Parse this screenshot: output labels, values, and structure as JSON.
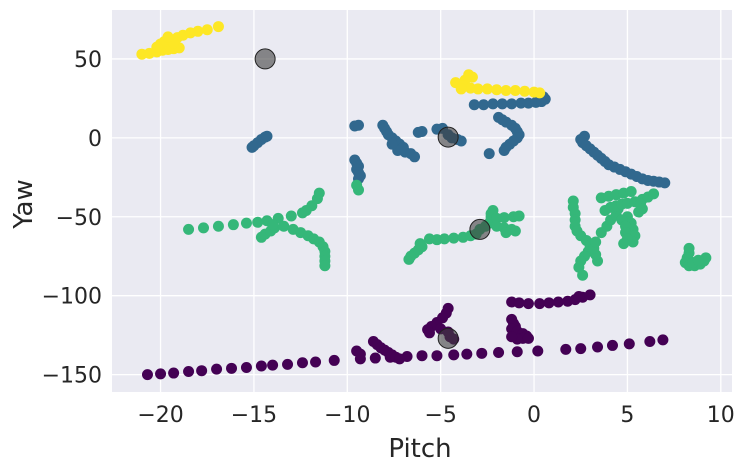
{
  "chart_data": {
    "type": "scatter",
    "xlabel": "Pitch",
    "ylabel": "Yaw",
    "xlim": [
      -22.6,
      10.6
    ],
    "ylim": [
      -161,
      81
    ],
    "xticks": [
      -20,
      -15,
      -10,
      -5,
      0,
      5,
      10
    ],
    "xtick_labels": [
      "−20",
      "−15",
      "−10",
      "−5",
      "0",
      "5",
      "10"
    ],
    "yticks": [
      -150,
      -100,
      -50,
      0,
      50
    ],
    "ytick_labels": [
      "−150",
      "−100",
      "−50",
      "0",
      "50"
    ],
    "grid": true,
    "legend": "none",
    "background": "#eaeaf2",
    "colormap": "viridis",
    "series": [
      {
        "color": "#440154",
        "points": [
          [
            -20.7,
            -150
          ],
          [
            -20.0,
            -149.5
          ],
          [
            -19.3,
            -149
          ],
          [
            -18.5,
            -148
          ],
          [
            -17.8,
            -147.5
          ],
          [
            -17.0,
            -146.5
          ],
          [
            -16.2,
            -146
          ],
          [
            -15.4,
            -145.5
          ],
          [
            -14.6,
            -144.5
          ],
          [
            -14.0,
            -144
          ],
          [
            -13.2,
            -143.5
          ],
          [
            -12.4,
            -142.5
          ],
          [
            -11.7,
            -142
          ],
          [
            -10.7,
            -141
          ],
          [
            -9.3,
            -140
          ],
          [
            -8.5,
            -139.5
          ],
          [
            -7.7,
            -139
          ],
          [
            -6.8,
            -138.5
          ],
          [
            -6.0,
            -138
          ],
          [
            -5.2,
            -138
          ],
          [
            -4.3,
            -137.5
          ],
          [
            -3.6,
            -137
          ],
          [
            -2.8,
            -136.5
          ],
          [
            -1.9,
            -136
          ],
          [
            -0.9,
            -135.5
          ],
          [
            0.2,
            -135
          ],
          [
            1.7,
            -134
          ],
          [
            2.5,
            -133.5
          ],
          [
            3.4,
            -132.5
          ],
          [
            4.2,
            -131.5
          ],
          [
            5.1,
            -130.5
          ],
          [
            6.2,
            -129
          ],
          [
            6.9,
            -128
          ],
          [
            -9.5,
            -135
          ],
          [
            -9.3,
            -137
          ],
          [
            -8.6,
            -129
          ],
          [
            -8.4,
            -131
          ],
          [
            -8.2,
            -133
          ],
          [
            -8.0,
            -134.5
          ],
          [
            -7.8,
            -136
          ],
          [
            -7.6,
            -137.5
          ],
          [
            -7.4,
            -139
          ],
          [
            -7.2,
            -140
          ],
          [
            -4.6,
            -108
          ],
          [
            -4.7,
            -111
          ],
          [
            -4.9,
            -114
          ],
          [
            -5.2,
            -117
          ],
          [
            -5.5,
            -119.5
          ],
          [
            -5.7,
            -121.5
          ],
          [
            -5.6,
            -123.5
          ],
          [
            -5.0,
            -121
          ],
          [
            -4.6,
            -123
          ],
          [
            -4.5,
            -126
          ],
          [
            -4.3,
            -127.5
          ],
          [
            -1.2,
            -104
          ],
          [
            -0.8,
            -104.5
          ],
          [
            -0.3,
            -105
          ],
          [
            0.3,
            -105
          ],
          [
            0.8,
            -104.5
          ],
          [
            1.3,
            -104
          ],
          [
            1.8,
            -103.5
          ],
          [
            2.2,
            -102.5
          ],
          [
            2.6,
            -101
          ],
          [
            3.0,
            -99.5
          ],
          [
            2.4,
            -100.5
          ],
          [
            -1.2,
            -115
          ],
          [
            -1.1,
            -117.5
          ],
          [
            -1.0,
            -119.5
          ],
          [
            -1.2,
            -121
          ],
          [
            -0.9,
            -122.5
          ],
          [
            -0.6,
            -124
          ],
          [
            -0.4,
            -125.5
          ],
          [
            -0.6,
            -127
          ],
          [
            -0.9,
            -127.5
          ],
          [
            -1.2,
            -126
          ],
          [
            -0.3,
            -127
          ]
        ]
      },
      {
        "color": "#31688e",
        "points": [
          [
            -15.1,
            -6
          ],
          [
            -15.0,
            -5
          ],
          [
            -14.8,
            -3
          ],
          [
            -14.6,
            -1
          ],
          [
            -14.4,
            0.5
          ],
          [
            -14.3,
            1
          ],
          [
            -9.6,
            -14
          ],
          [
            -9.5,
            -16
          ],
          [
            -9.4,
            -18
          ],
          [
            -9.5,
            -20
          ],
          [
            -9.4,
            -22
          ],
          [
            -9.3,
            -24
          ],
          [
            -9.4,
            -26
          ],
          [
            -9.6,
            7.5
          ],
          [
            -9.4,
            8
          ],
          [
            -8.1,
            8
          ],
          [
            -8.0,
            6
          ],
          [
            -7.9,
            4
          ],
          [
            -7.8,
            2
          ],
          [
            -7.6,
            0
          ],
          [
            -7.4,
            -2
          ],
          [
            -7.2,
            -4
          ],
          [
            -7.0,
            -6
          ],
          [
            -7.3,
            -8
          ],
          [
            -6.9,
            -9
          ],
          [
            -6.6,
            -10
          ],
          [
            -6.4,
            -12
          ],
          [
            -7.6,
            -4
          ],
          [
            -6.2,
            3.5
          ],
          [
            -6.0,
            4
          ],
          [
            -5.2,
            5.5
          ],
          [
            -4.9,
            6
          ],
          [
            -4.6,
            2
          ],
          [
            -4.4,
            0
          ],
          [
            -4.1,
            -1
          ],
          [
            -3.9,
            -2
          ],
          [
            -3.2,
            21
          ],
          [
            -2.7,
            21
          ],
          [
            -2.2,
            21.5
          ],
          [
            -1.7,
            21.5
          ],
          [
            -1.2,
            21.5
          ],
          [
            -0.7,
            22
          ],
          [
            -0.3,
            22
          ],
          [
            0.1,
            22.5
          ],
          [
            0.4,
            23
          ],
          [
            0.6,
            24.5
          ],
          [
            0.5,
            26
          ],
          [
            -1.9,
            13
          ],
          [
            -1.7,
            11.5
          ],
          [
            -1.5,
            10
          ],
          [
            -1.2,
            8
          ],
          [
            -1.0,
            6
          ],
          [
            -0.9,
            4
          ],
          [
            -0.8,
            2
          ],
          [
            -0.9,
            0
          ],
          [
            -1.1,
            -2
          ],
          [
            -1.3,
            -4
          ],
          [
            -1.5,
            -6
          ],
          [
            -1.6,
            -8
          ],
          [
            -2.4,
            -10
          ],
          [
            2.7,
            1
          ],
          [
            2.5,
            -1
          ],
          [
            2.6,
            -3
          ],
          [
            2.8,
            -5
          ],
          [
            3.0,
            -7
          ],
          [
            3.2,
            -9
          ],
          [
            3.4,
            -11
          ],
          [
            3.6,
            -13
          ],
          [
            3.8,
            -15
          ],
          [
            4.0,
            -17
          ],
          [
            4.3,
            -18.5
          ],
          [
            4.6,
            -20
          ],
          [
            4.9,
            -21.5
          ],
          [
            5.2,
            -23
          ],
          [
            5.5,
            -24.5
          ],
          [
            5.8,
            -26
          ],
          [
            6.1,
            -27
          ],
          [
            6.4,
            -27.5
          ],
          [
            6.7,
            -28
          ],
          [
            7.0,
            -28.5
          ]
        ]
      },
      {
        "color": "#35b779",
        "points": [
          [
            -18.5,
            -58
          ],
          [
            -17.7,
            -57
          ],
          [
            -16.9,
            -56
          ],
          [
            -16.1,
            -55
          ],
          [
            -15.4,
            -54
          ],
          [
            -14.8,
            -53.5
          ],
          [
            -14.3,
            -52.5
          ],
          [
            -13.7,
            -51
          ],
          [
            -13.0,
            -49.5
          ],
          [
            -12.4,
            -47.5
          ],
          [
            -11.9,
            -43
          ],
          [
            -11.6,
            -38.5
          ],
          [
            -11.5,
            -35
          ],
          [
            -12.2,
            -46
          ],
          [
            -14.6,
            -63
          ],
          [
            -14.4,
            -61
          ],
          [
            -14.1,
            -59
          ],
          [
            -13.9,
            -57
          ],
          [
            -14.0,
            -55
          ],
          [
            -13.4,
            -56
          ],
          [
            -12.9,
            -58
          ],
          [
            -12.5,
            -60
          ],
          [
            -12.1,
            -62
          ],
          [
            -11.8,
            -64
          ],
          [
            -11.5,
            -66
          ],
          [
            -11.3,
            -69
          ],
          [
            -11.2,
            -72
          ],
          [
            -11.2,
            -75
          ],
          [
            -11.2,
            -78
          ],
          [
            -11.2,
            -81
          ],
          [
            -9.5,
            -30
          ],
          [
            -9.4,
            -33
          ],
          [
            -6.7,
            -77
          ],
          [
            -6.6,
            -75
          ],
          [
            -6.4,
            -73
          ],
          [
            -6.2,
            -71
          ],
          [
            -6.0,
            -69
          ],
          [
            -6.1,
            -67
          ],
          [
            -5.6,
            -64
          ],
          [
            -5.2,
            -64.5
          ],
          [
            -4.8,
            -64
          ],
          [
            -4.3,
            -63.5
          ],
          [
            -3.8,
            -63
          ],
          [
            -3.4,
            -62
          ],
          [
            -3.1,
            -61
          ],
          [
            -2.9,
            -58
          ],
          [
            -2.6,
            -56
          ],
          [
            -2.4,
            -54
          ],
          [
            -2.3,
            -52
          ],
          [
            -2.3,
            -50
          ],
          [
            -2.3,
            -48
          ],
          [
            -2.2,
            -46
          ],
          [
            -2.0,
            -51
          ],
          [
            -1.6,
            -50.5
          ],
          [
            -1.1,
            -50
          ],
          [
            -0.8,
            -49.5
          ],
          [
            -2.0,
            -56
          ],
          [
            -1.6,
            -57
          ],
          [
            -1.2,
            -58
          ],
          [
            -1.0,
            -59
          ],
          [
            -1.5,
            -60
          ],
          [
            2.1,
            -40
          ],
          [
            2.1,
            -44
          ],
          [
            2.2,
            -48
          ],
          [
            2.2,
            -52
          ],
          [
            2.2,
            -56
          ],
          [
            2.3,
            -59
          ],
          [
            2.5,
            -62
          ],
          [
            2.8,
            -65
          ],
          [
            3.0,
            -68
          ],
          [
            2.9,
            -72
          ],
          [
            2.7,
            -75
          ],
          [
            2.5,
            -78
          ],
          [
            2.4,
            -82
          ],
          [
            2.6,
            -87
          ],
          [
            3.4,
            -78
          ],
          [
            3.3,
            -74
          ],
          [
            3.2,
            -70
          ],
          [
            3.3,
            -66
          ],
          [
            3.6,
            -60
          ],
          [
            3.9,
            -56
          ],
          [
            4.1,
            -52
          ],
          [
            4.4,
            -49
          ],
          [
            4.5,
            -45
          ],
          [
            3.8,
            -46
          ],
          [
            4.1,
            -44
          ],
          [
            4.4,
            -43
          ],
          [
            4.7,
            -42
          ],
          [
            5.0,
            -41.5
          ],
          [
            5.4,
            -40.5
          ],
          [
            5.8,
            -39
          ],
          [
            6.1,
            -37.5
          ],
          [
            6.4,
            -35.5
          ],
          [
            3.6,
            -38
          ],
          [
            4.0,
            -37
          ],
          [
            4.4,
            -36
          ],
          [
            4.8,
            -35
          ],
          [
            5.2,
            -34
          ],
          [
            5.0,
            -50
          ],
          [
            5.2,
            -54
          ],
          [
            5.3,
            -58
          ],
          [
            5.4,
            -62
          ],
          [
            5.3,
            -66
          ],
          [
            4.7,
            -52
          ],
          [
            4.9,
            -56
          ],
          [
            4.9,
            -60
          ],
          [
            5.0,
            -64
          ],
          [
            4.8,
            -67
          ],
          [
            5.7,
            -42
          ],
          [
            5.8,
            -45
          ],
          [
            5.6,
            -47
          ],
          [
            8.3,
            -70
          ],
          [
            8.3,
            -73
          ],
          [
            8.2,
            -76
          ],
          [
            8.1,
            -79
          ],
          [
            8.3,
            -81
          ],
          [
            8.6,
            -81
          ],
          [
            8.9,
            -80
          ],
          [
            9.1,
            -78
          ],
          [
            9.2,
            -76
          ],
          [
            8.5,
            -79
          ],
          [
            8.8,
            -77.5
          ]
        ]
      },
      {
        "color": "#fde725",
        "points": [
          [
            -21.0,
            53
          ],
          [
            -20.6,
            53.5
          ],
          [
            -20.2,
            54.5
          ],
          [
            -19.9,
            55.5
          ],
          [
            -19.6,
            56
          ],
          [
            -19.3,
            56.5
          ],
          [
            -19.0,
            57
          ],
          [
            -19.5,
            58
          ],
          [
            -20.0,
            59.5
          ],
          [
            -19.8,
            61
          ],
          [
            -19.5,
            62.5
          ],
          [
            -20.2,
            57.5
          ],
          [
            -19.1,
            63.5
          ],
          [
            -18.8,
            65
          ],
          [
            -18.4,
            66.5
          ],
          [
            -18.0,
            67.5
          ],
          [
            -17.5,
            68.5
          ],
          [
            -16.9,
            70.5
          ],
          [
            -19.3,
            60
          ],
          [
            -19.6,
            64
          ],
          [
            -3.5,
            40
          ],
          [
            -3.3,
            38.5
          ],
          [
            -3.7,
            36.5
          ],
          [
            -4.2,
            35
          ],
          [
            -3.8,
            33
          ],
          [
            -3.4,
            31.5
          ],
          [
            -3.0,
            31
          ],
          [
            -2.5,
            31
          ],
          [
            -2.0,
            30.5
          ],
          [
            -1.5,
            30
          ],
          [
            -1.0,
            30
          ],
          [
            -0.5,
            29.5
          ],
          [
            0.0,
            29
          ],
          [
            0.3,
            28.5
          ],
          [
            -3.9,
            31
          ]
        ]
      },
      {
        "color": "#404040",
        "opacity": 0.6,
        "large": true,
        "points": [
          [
            -14.4,
            50
          ],
          [
            -4.6,
            0.5
          ],
          [
            -2.9,
            -58
          ],
          [
            -4.6,
            -127
          ]
        ]
      }
    ]
  }
}
